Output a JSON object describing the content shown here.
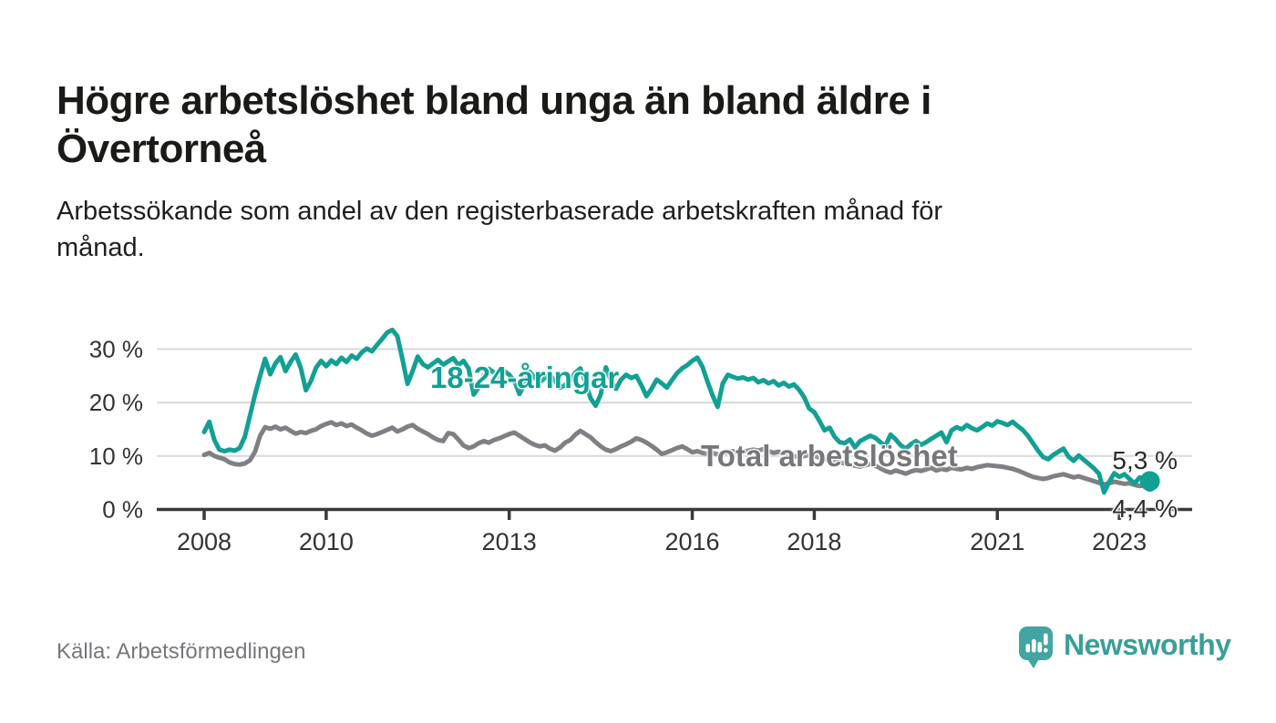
{
  "header": {
    "title_lines": [
      "Högre arbetslöshet bland unga än bland äldre i",
      "Övertorneå"
    ],
    "subtitle_lines": [
      "Arbetssökande som andel av den registerbaserade arbetskraften månad för",
      "månad."
    ]
  },
  "chart_data": {
    "type": "line",
    "frequency": "monthly",
    "x_start": "2008-01",
    "x_end": "2023-07",
    "xlabel": "",
    "ylabel": "",
    "ylim": [
      0,
      35
    ],
    "grid": "horizontal",
    "x_ticks": [
      2008,
      2010,
      2013,
      2016,
      2018,
      2021,
      2023
    ],
    "y_ticks": [
      {
        "value": 0,
        "label": "0 %"
      },
      {
        "value": 10,
        "label": "10 %"
      },
      {
        "value": 20,
        "label": "20 %"
      },
      {
        "value": 30,
        "label": "30 %"
      }
    ],
    "value_label_color": "#2b2b2b",
    "axis_color": "#3a3a3a",
    "grid_color": "#d9d9d9",
    "tick_label_color": "#333333",
    "series": [
      {
        "name": "18-24-åringar",
        "label": "18-24-åringar",
        "color": "#13a094",
        "label_color": "#13a094",
        "end_label": "5,3 %",
        "end_value": 5.3,
        "values": [
          14.5,
          16.4,
          13.0,
          11.2,
          10.9,
          11.2,
          11.0,
          11.5,
          13.6,
          17.5,
          21.5,
          25.0,
          28.2,
          25.3,
          27.3,
          28.5,
          25.9,
          27.6,
          29.0,
          26.5,
          22.3,
          24.0,
          26.5,
          27.8,
          26.8,
          27.9,
          27.2,
          28.4,
          27.6,
          28.8,
          28.2,
          29.4,
          30.1,
          29.6,
          30.8,
          31.9,
          33.1,
          33.6,
          32.4,
          28.1,
          23.5,
          25.9,
          28.6,
          27.2,
          26.6,
          27.3,
          28.0,
          27.1,
          27.7,
          28.3,
          27.0,
          27.8,
          26.4,
          21.5,
          22.8,
          25.1,
          26.3,
          25.6,
          24.8,
          25.9,
          25.2,
          24.1,
          21.6,
          23.4,
          25.8,
          24.7,
          23.8,
          24.6,
          25.2,
          24.0,
          22.8,
          23.3,
          24.2,
          25.6,
          26.4,
          23.8,
          20.8,
          19.4,
          21.5,
          26.6,
          24.1,
          22.6,
          24.3,
          25.2,
          24.6,
          25.0,
          23.2,
          21.2,
          22.6,
          24.3,
          23.6,
          22.8,
          24.2,
          25.5,
          26.4,
          27.0,
          27.8,
          28.4,
          26.7,
          23.9,
          21.3,
          19.2,
          23.6,
          25.2,
          24.8,
          24.5,
          24.7,
          24.3,
          24.6,
          23.8,
          24.2,
          23.6,
          24.0,
          23.2,
          23.7,
          23.0,
          23.4,
          22.4,
          21.0,
          18.9,
          18.2,
          16.6,
          14.8,
          15.3,
          13.6,
          12.6,
          12.4,
          13.1,
          11.6,
          12.8,
          13.3,
          13.8,
          13.4,
          12.6,
          11.9,
          14.0,
          13.1,
          12.0,
          11.4,
          12.2,
          12.8,
          12.1,
          12.6,
          13.2,
          13.8,
          14.4,
          12.6,
          14.8,
          15.4,
          15.0,
          15.8,
          15.2,
          14.8,
          15.4,
          16.1,
          15.7,
          16.5,
          16.2,
          15.8,
          16.4,
          15.6,
          14.9,
          13.8,
          12.4,
          11.0,
          9.8,
          9.4,
          10.2,
          10.8,
          11.4,
          9.9,
          9.1,
          10.1,
          9.3,
          8.5,
          7.7,
          6.7,
          3.2,
          5.2,
          6.8,
          6.1,
          6.6,
          5.7,
          4.9,
          6.0,
          5.7,
          5.3
        ]
      },
      {
        "name": "Total arbetslöshet",
        "label": "Total arbetslöshet",
        "color": "#7e8084",
        "label_color": "#76777b",
        "end_label": "4,4 %",
        "end_value": 4.4,
        "values": [
          10.2,
          10.6,
          10.0,
          9.7,
          9.4,
          8.8,
          8.5,
          8.4,
          8.6,
          9.2,
          10.8,
          13.8,
          15.4,
          15.1,
          15.5,
          15.0,
          15.3,
          14.7,
          14.2,
          14.5,
          14.3,
          14.7,
          15.0,
          15.6,
          16.0,
          16.3,
          15.8,
          16.1,
          15.6,
          15.9,
          15.3,
          14.8,
          14.2,
          13.8,
          14.1,
          14.5,
          14.9,
          15.3,
          14.6,
          15.0,
          15.5,
          15.8,
          15.1,
          14.6,
          14.1,
          13.5,
          13.0,
          12.8,
          14.3,
          14.1,
          13.1,
          12.0,
          11.5,
          11.8,
          12.4,
          12.8,
          12.5,
          13.0,
          13.3,
          13.7,
          14.1,
          14.4,
          13.8,
          13.2,
          12.6,
          12.1,
          11.8,
          12.0,
          11.4,
          11.0,
          11.6,
          12.5,
          13.0,
          14.0,
          14.7,
          14.1,
          13.5,
          12.6,
          11.8,
          11.2,
          10.9,
          11.3,
          11.8,
          12.2,
          12.7,
          13.3,
          13.0,
          12.5,
          11.9,
          11.2,
          10.4,
          10.7,
          11.1,
          11.5,
          11.8,
          11.3,
          10.7,
          10.9,
          10.6,
          10.4,
          10.6,
          10.3,
          10.5,
          10.7,
          10.9,
          10.6,
          10.8,
          11.0,
          11.2,
          11.0,
          11.3,
          10.9,
          10.6,
          10.8,
          10.4,
          10.2,
          10.0,
          9.8,
          10.0,
          10.2,
          10.0,
          9.7,
          9.4,
          9.2,
          9.0,
          8.8,
          8.6,
          8.4,
          8.2,
          8.0,
          8.3,
          8.5,
          8.2,
          7.7,
          7.2,
          6.9,
          7.3,
          7.0,
          6.7,
          7.1,
          7.4,
          7.2,
          7.5,
          7.8,
          7.3,
          7.6,
          7.4,
          7.8,
          7.6,
          7.5,
          7.8,
          7.6,
          7.9,
          8.1,
          8.3,
          8.2,
          8.1,
          8.0,
          7.8,
          7.6,
          7.3,
          6.9,
          6.5,
          6.1,
          5.9,
          5.7,
          5.9,
          6.2,
          6.4,
          6.6,
          6.3,
          6.0,
          6.2,
          5.9,
          5.6,
          5.3,
          5.0,
          4.7,
          4.9,
          5.2,
          5.0,
          4.8,
          4.9,
          4.6,
          4.4,
          4.5,
          4.4
        ]
      }
    ]
  },
  "footer": {
    "source": "Källa: Arbetsförmedlingen"
  },
  "branding": {
    "name": "Newsworthy",
    "wordmark_color": "#3a9e99",
    "bubble_color": "#43a5a1"
  }
}
